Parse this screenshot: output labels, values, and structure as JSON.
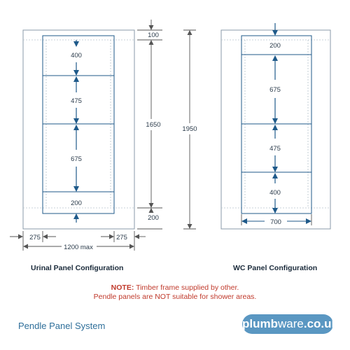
{
  "urinal": {
    "section_labels": [
      "400",
      "475",
      "675",
      "200"
    ],
    "height_dims": [
      "100",
      "1650",
      "200",
      "1950"
    ],
    "width_dims": [
      "275",
      "275",
      "1200 max"
    ],
    "caption": "Urinal Panel Configuration"
  },
  "wc": {
    "section_labels": [
      "200",
      "675",
      "475",
      "400"
    ],
    "width_dim": "700",
    "caption": "WC Panel Configuration"
  },
  "note": {
    "prefix": "NOTE:",
    "line1": "Timber frame supplied by other.",
    "line2": "Pendle panels are NOT suitable for shower areas."
  },
  "footer": {
    "title": "Pendle Panel System",
    "brand_part1": "plumb",
    "brand_part2": "ware",
    "brand_part3": ".co.uk"
  },
  "colors": {
    "line": "#1f5a8a",
    "frame": "#8a9aa8",
    "dim_text": "#2a3a4a",
    "note": "#c0392b",
    "brand_bg": "#5a97c2"
  }
}
